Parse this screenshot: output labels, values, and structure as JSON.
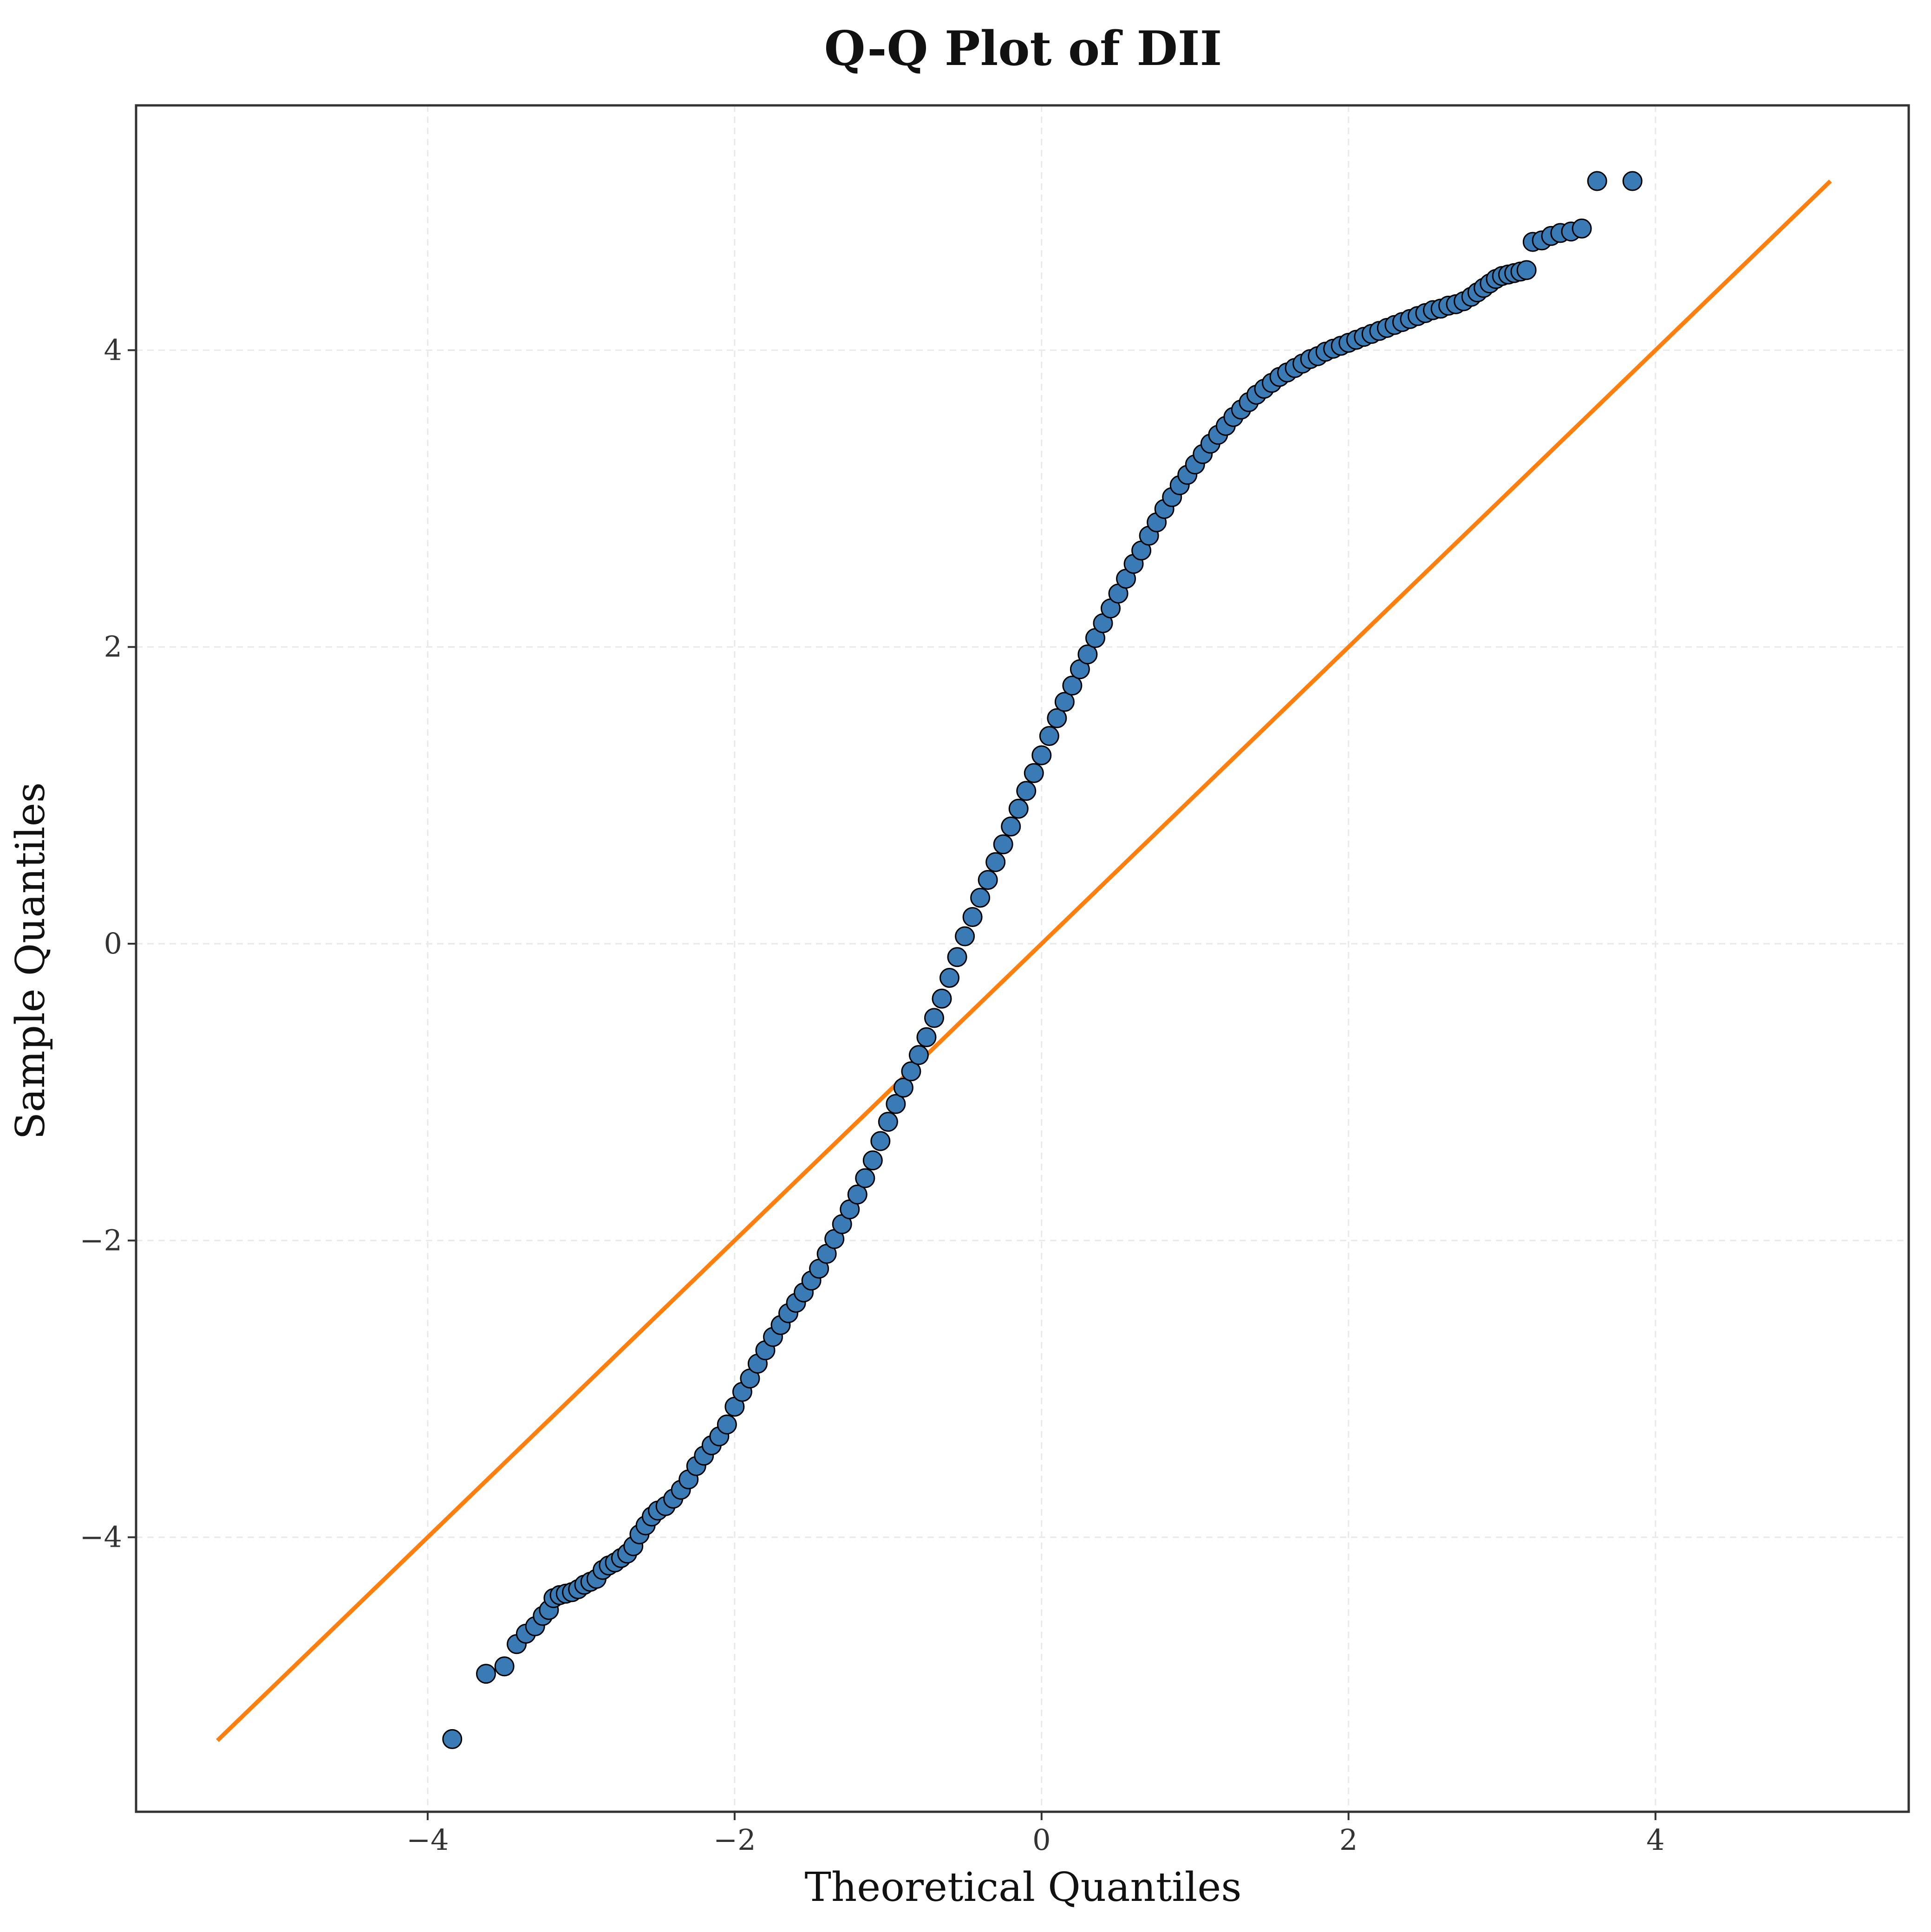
{
  "chart_data": {
    "type": "scatter",
    "title": "Q-Q Plot of DII",
    "xlabel": "Theoretical Quantiles",
    "ylabel": "Sample Quantiles",
    "xlim": [
      -5.9,
      5.65
    ],
    "ylim": [
      -5.85,
      5.65
    ],
    "x_ticks": [
      -4,
      -2,
      0,
      2,
      4
    ],
    "y_ticks": [
      -4,
      -2,
      0,
      2,
      4
    ],
    "x_tick_labels": [
      "−4",
      "−2",
      "0",
      "2",
      "4"
    ],
    "y_tick_labels": [
      "−4",
      "−2",
      "0",
      "2",
      "4"
    ],
    "grid": true,
    "legend": "none",
    "colors": {
      "points_fill": "#3a7bb5",
      "points_edge": "#000000",
      "reference_line": "#ff7f0e",
      "frame": "#333333",
      "grid": "#e9e9e9"
    },
    "series": [
      {
        "kind": "points",
        "points": [
          [
            -3.84,
            -5.36
          ],
          [
            -3.62,
            -4.92
          ],
          [
            -3.5,
            -4.87
          ],
          [
            -3.42,
            -4.72
          ],
          [
            -3.36,
            -4.65
          ],
          [
            -3.3,
            -4.6
          ],
          [
            -3.25,
            -4.53
          ],
          [
            -3.21,
            -4.49
          ],
          [
            -3.18,
            -4.41
          ],
          [
            -3.14,
            -4.39
          ],
          [
            -3.1,
            -4.38
          ],
          [
            -3.06,
            -4.37
          ],
          [
            -3.02,
            -4.35
          ],
          [
            -2.98,
            -4.32
          ],
          [
            -2.94,
            -4.3
          ],
          [
            -2.9,
            -4.28
          ],
          [
            -2.86,
            -4.22
          ],
          [
            -2.82,
            -4.19
          ],
          [
            -2.78,
            -4.17
          ],
          [
            -2.74,
            -4.14
          ],
          [
            -2.7,
            -4.11
          ],
          [
            -2.66,
            -4.06
          ],
          [
            -2.62,
            -3.98
          ],
          [
            -2.58,
            -3.92
          ],
          [
            -2.54,
            -3.86
          ],
          [
            -2.5,
            -3.82
          ],
          [
            -2.45,
            -3.79
          ],
          [
            -2.4,
            -3.74
          ],
          [
            -2.35,
            -3.68
          ],
          [
            -2.3,
            -3.61
          ],
          [
            -2.25,
            -3.52
          ],
          [
            -2.2,
            -3.45
          ],
          [
            -2.15,
            -3.38
          ],
          [
            -2.1,
            -3.32
          ],
          [
            -2.05,
            -3.24
          ],
          [
            -2.0,
            -3.12
          ],
          [
            -1.95,
            -3.02
          ],
          [
            -1.9,
            -2.93
          ],
          [
            -1.85,
            -2.83
          ],
          [
            -1.8,
            -2.74
          ],
          [
            -1.75,
            -2.65
          ],
          [
            -1.7,
            -2.57
          ],
          [
            -1.65,
            -2.49
          ],
          [
            -1.6,
            -2.42
          ],
          [
            -1.55,
            -2.35
          ],
          [
            -1.5,
            -2.27
          ],
          [
            -1.45,
            -2.19
          ],
          [
            -1.4,
            -2.09
          ],
          [
            -1.35,
            -1.99
          ],
          [
            -1.3,
            -1.89
          ],
          [
            -1.25,
            -1.79
          ],
          [
            -1.2,
            -1.69
          ],
          [
            -1.15,
            -1.58
          ],
          [
            -1.1,
            -1.46
          ],
          [
            -1.05,
            -1.33
          ],
          [
            -1.0,
            -1.2
          ],
          [
            -0.95,
            -1.08
          ],
          [
            -0.9,
            -0.97
          ],
          [
            -0.85,
            -0.86
          ],
          [
            -0.8,
            -0.75
          ],
          [
            -0.75,
            -0.63
          ],
          [
            -0.7,
            -0.5
          ],
          [
            -0.65,
            -0.37
          ],
          [
            -0.6,
            -0.23
          ],
          [
            -0.55,
            -0.09
          ],
          [
            -0.5,
            0.05
          ],
          [
            -0.45,
            0.18
          ],
          [
            -0.4,
            0.31
          ],
          [
            -0.35,
            0.43
          ],
          [
            -0.3,
            0.55
          ],
          [
            -0.25,
            0.67
          ],
          [
            -0.2,
            0.79
          ],
          [
            -0.15,
            0.91
          ],
          [
            -0.1,
            1.03
          ],
          [
            -0.05,
            1.15
          ],
          [
            0.0,
            1.27
          ],
          [
            0.05,
            1.4
          ],
          [
            0.1,
            1.52
          ],
          [
            0.15,
            1.63
          ],
          [
            0.2,
            1.74
          ],
          [
            0.25,
            1.85
          ],
          [
            0.3,
            1.95
          ],
          [
            0.35,
            2.06
          ],
          [
            0.4,
            2.16
          ],
          [
            0.45,
            2.26
          ],
          [
            0.5,
            2.36
          ],
          [
            0.55,
            2.46
          ],
          [
            0.6,
            2.56
          ],
          [
            0.65,
            2.65
          ],
          [
            0.7,
            2.75
          ],
          [
            0.75,
            2.84
          ],
          [
            0.8,
            2.93
          ],
          [
            0.85,
            3.01
          ],
          [
            0.9,
            3.09
          ],
          [
            0.95,
            3.16
          ],
          [
            1.0,
            3.23
          ],
          [
            1.05,
            3.3
          ],
          [
            1.1,
            3.37
          ],
          [
            1.15,
            3.43
          ],
          [
            1.2,
            3.49
          ],
          [
            1.25,
            3.55
          ],
          [
            1.3,
            3.6
          ],
          [
            1.35,
            3.65
          ],
          [
            1.4,
            3.7
          ],
          [
            1.45,
            3.74
          ],
          [
            1.5,
            3.78
          ],
          [
            1.55,
            3.82
          ],
          [
            1.6,
            3.85
          ],
          [
            1.65,
            3.88
          ],
          [
            1.7,
            3.91
          ],
          [
            1.75,
            3.94
          ],
          [
            1.8,
            3.96
          ],
          [
            1.85,
            3.99
          ],
          [
            1.9,
            4.01
          ],
          [
            1.95,
            4.03
          ],
          [
            2.0,
            4.05
          ],
          [
            2.05,
            4.07
          ],
          [
            2.1,
            4.09
          ],
          [
            2.15,
            4.11
          ],
          [
            2.2,
            4.13
          ],
          [
            2.25,
            4.15
          ],
          [
            2.3,
            4.17
          ],
          [
            2.35,
            4.19
          ],
          [
            2.4,
            4.21
          ],
          [
            2.45,
            4.23
          ],
          [
            2.5,
            4.25
          ],
          [
            2.55,
            4.27
          ],
          [
            2.6,
            4.28
          ],
          [
            2.65,
            4.3
          ],
          [
            2.7,
            4.31
          ],
          [
            2.75,
            4.33
          ],
          [
            2.8,
            4.36
          ],
          [
            2.84,
            4.39
          ],
          [
            2.88,
            4.42
          ],
          [
            2.92,
            4.45
          ],
          [
            2.96,
            4.48
          ],
          [
            3.0,
            4.5
          ],
          [
            3.04,
            4.51
          ],
          [
            3.08,
            4.52
          ],
          [
            3.12,
            4.53
          ],
          [
            3.16,
            4.54
          ],
          [
            3.2,
            4.73
          ],
          [
            3.26,
            4.74
          ],
          [
            3.32,
            4.77
          ],
          [
            3.38,
            4.79
          ],
          [
            3.45,
            4.8
          ],
          [
            3.52,
            4.82
          ],
          [
            3.62,
            5.14
          ],
          [
            3.85,
            5.14
          ]
        ]
      },
      {
        "kind": "reference_line",
        "points": [
          [
            -5.37,
            -5.37
          ],
          [
            5.14,
            5.14
          ]
        ]
      }
    ]
  }
}
